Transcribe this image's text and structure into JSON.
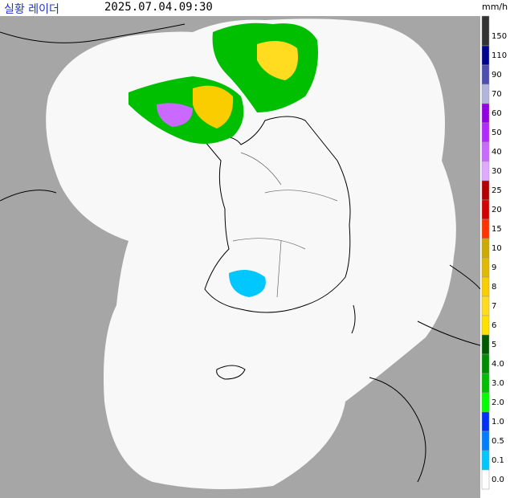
{
  "header": {
    "title": "실황 레이더",
    "timestamp": "2025.07.04.09:30",
    "unit": "mm/h"
  },
  "legend": {
    "items": [
      {
        "label": "150",
        "color": "#333333"
      },
      {
        "label": "110",
        "color": "#000390"
      },
      {
        "label": "90",
        "color": "#4c4eb1"
      },
      {
        "label": "70",
        "color": "#b3b4de"
      },
      {
        "label": "60",
        "color": "#9300e4"
      },
      {
        "label": "50",
        "color": "#b329ff"
      },
      {
        "label": "40",
        "color": "#c969ff"
      },
      {
        "label": "30",
        "color": "#e0a9ff"
      },
      {
        "label": "25",
        "color": "#b40000"
      },
      {
        "label": "20",
        "color": "#d20000"
      },
      {
        "label": "15",
        "color": "#ff3300"
      },
      {
        "label": "10",
        "color": "#ccaa00"
      },
      {
        "label": "9",
        "color": "#e0b900"
      },
      {
        "label": "8",
        "color": "#f9cd00"
      },
      {
        "label": "7",
        "color": "#ffdc1f"
      },
      {
        "label": "6",
        "color": "#ffe100"
      },
      {
        "label": "5",
        "color": "#005a00"
      },
      {
        "label": "4.0",
        "color": "#008c00"
      },
      {
        "label": "3.0",
        "color": "#00be00"
      },
      {
        "label": "2.0",
        "color": "#00ff00"
      },
      {
        "label": "1.0",
        "color": "#0033f5"
      },
      {
        "label": "0.5",
        "color": "#0080ff"
      },
      {
        "label": "0.1",
        "color": "#00c8ff"
      },
      {
        "label": "0.0",
        "color": "#ffffff"
      }
    ]
  }
}
